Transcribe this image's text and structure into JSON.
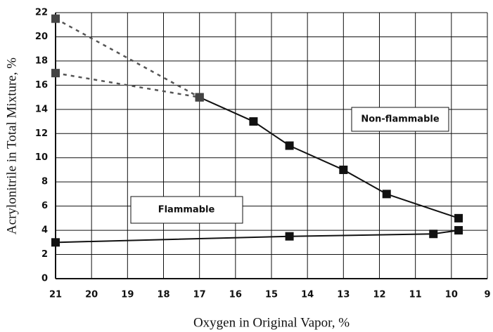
{
  "chart_data": {
    "type": "line",
    "xlabel": "Oxygen in Original Vapor, %",
    "ylabel": "Acrylonitrile in Total Mixture, %",
    "xlim": [
      21,
      9
    ],
    "xticks": [
      21,
      20,
      19,
      18,
      17,
      16,
      15,
      14,
      13,
      12,
      11,
      10,
      9
    ],
    "ylim": [
      0,
      22
    ],
    "yticks": [
      0,
      2,
      4,
      6,
      8,
      10,
      12,
      14,
      16,
      18,
      20,
      22
    ],
    "grid": true,
    "series": [
      {
        "color": "#111111",
        "dashed": false,
        "x": [
          17,
          15.5,
          14.5,
          13,
          11.8,
          9.8
        ],
        "values": [
          15,
          13,
          11,
          9,
          7,
          5
        ]
      },
      {
        "color": "#111111",
        "dashed": false,
        "x": [
          21,
          14.5,
          10.5,
          9.8
        ],
        "values": [
          3,
          3.5,
          3.7,
          4
        ]
      },
      {
        "color": "#555555",
        "dashed": true,
        "x": [
          21,
          17
        ],
        "values": [
          21.5,
          15
        ]
      },
      {
        "color": "#555555",
        "dashed": true,
        "x": [
          21,
          17
        ],
        "values": [
          17,
          15
        ]
      }
    ],
    "annotations": [
      "Non-flammable",
      "Flammable"
    ]
  }
}
